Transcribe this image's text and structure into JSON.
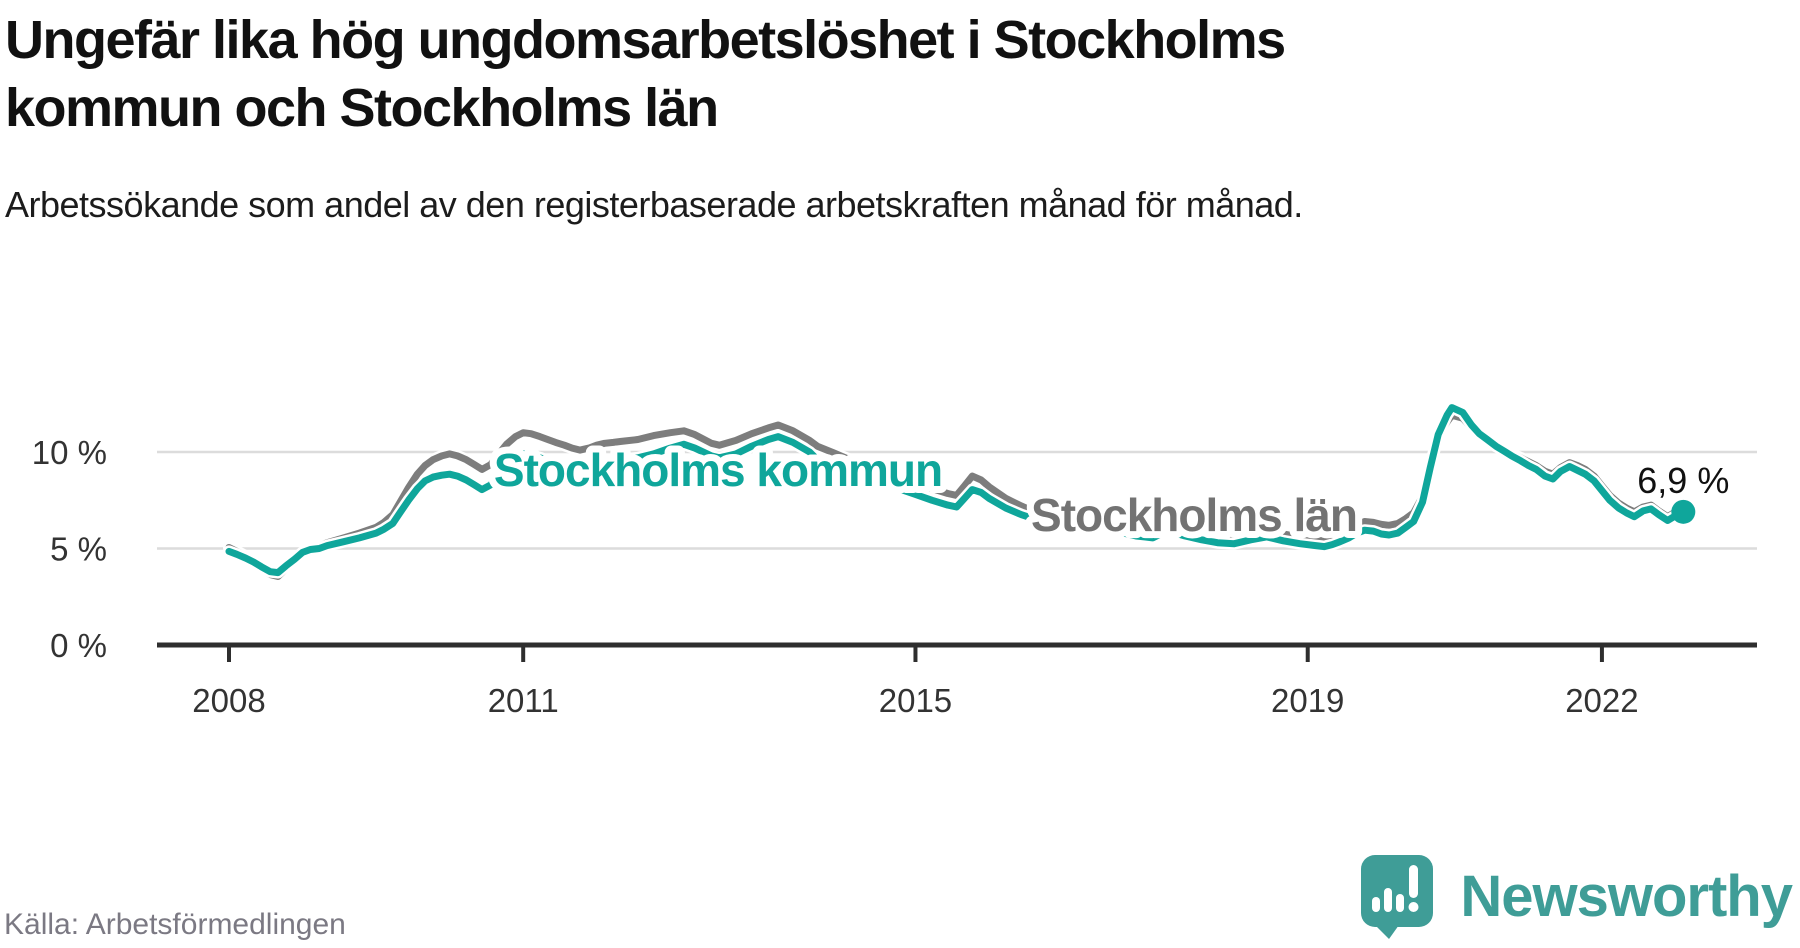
{
  "title": "Ungefär lika hög ungdomsarbetslöshet i Stockholms kommun och Stockholms län",
  "subtitle": "Arbetssökande som andel av den registerbaserade arbetskraften månad för månad.",
  "source": "Källa: Arbetsförmedlingen",
  "logo": {
    "text": "Newsworthy",
    "icon": "speech-bubble-bar-chart-exclamation",
    "color": "#3f9d97"
  },
  "colors": {
    "kommun_line": "#0fa69b",
    "lan_line": "#7d7d7d",
    "lan_label": "#737373",
    "gridline": "#dcdcdc",
    "axis": "#2e2e2e",
    "tick_text": "#333333",
    "end_label_text": "#111111"
  },
  "chart_data": {
    "type": "line",
    "title": "Ungefär lika hög ungdomsarbetslöshet i Stockholms kommun och Stockholms län",
    "xlabel": "",
    "ylabel": "Arbetssökande som andel av den registerbaserade arbetskraften",
    "x_axis": {
      "range": [
        2007.27,
        2023.58
      ],
      "ticks": [
        2008,
        2011,
        2015,
        2019,
        2022
      ],
      "tick_labels": [
        "2008",
        "2011",
        "2015",
        "2019",
        "2022"
      ]
    },
    "y_axis": {
      "range": [
        0,
        13.5
      ],
      "ticks": [
        0,
        5,
        10
      ],
      "tick_labels": [
        "0 %",
        "5 %",
        "10 %"
      ],
      "gridlines": [
        5,
        10
      ],
      "grid": true
    },
    "legend_position": "inline-labels",
    "end_label": "6,9 %",
    "end_value": 6.9,
    "series": [
      {
        "name": "Stockholms län",
        "color": "#7d7d7d",
        "label": {
          "text": "Stockholms län",
          "x": 1194,
          "y": 531,
          "color": "#737373"
        },
        "points": [
          [
            2008.0,
            5.05
          ],
          [
            2008.08,
            4.85
          ],
          [
            2008.17,
            4.6
          ],
          [
            2008.25,
            4.3
          ],
          [
            2008.33,
            3.95
          ],
          [
            2008.42,
            3.65
          ],
          [
            2008.5,
            3.55
          ],
          [
            2008.58,
            3.95
          ],
          [
            2008.67,
            4.4
          ],
          [
            2008.75,
            4.8
          ],
          [
            2008.83,
            5.0
          ],
          [
            2008.92,
            5.1
          ],
          [
            2009.0,
            5.3
          ],
          [
            2009.17,
            5.55
          ],
          [
            2009.33,
            5.8
          ],
          [
            2009.5,
            6.1
          ],
          [
            2009.58,
            6.35
          ],
          [
            2009.67,
            6.75
          ],
          [
            2009.75,
            7.45
          ],
          [
            2009.83,
            8.15
          ],
          [
            2009.92,
            8.85
          ],
          [
            2010.0,
            9.3
          ],
          [
            2010.08,
            9.6
          ],
          [
            2010.17,
            9.8
          ],
          [
            2010.25,
            9.9
          ],
          [
            2010.33,
            9.8
          ],
          [
            2010.42,
            9.6
          ],
          [
            2010.5,
            9.35
          ],
          [
            2010.58,
            9.1
          ],
          [
            2010.67,
            9.35
          ],
          [
            2010.75,
            9.9
          ],
          [
            2010.83,
            10.4
          ],
          [
            2010.92,
            10.8
          ],
          [
            2011.0,
            11.0
          ],
          [
            2011.08,
            10.95
          ],
          [
            2011.17,
            10.8
          ],
          [
            2011.25,
            10.65
          ],
          [
            2011.33,
            10.5
          ],
          [
            2011.42,
            10.35
          ],
          [
            2011.5,
            10.2
          ],
          [
            2011.58,
            10.1
          ],
          [
            2011.67,
            10.2
          ],
          [
            2011.75,
            10.35
          ],
          [
            2011.83,
            10.45
          ],
          [
            2011.92,
            10.5
          ],
          [
            2012.0,
            10.55
          ],
          [
            2012.17,
            10.65
          ],
          [
            2012.33,
            10.85
          ],
          [
            2012.5,
            11.0
          ],
          [
            2012.64,
            11.1
          ],
          [
            2012.75,
            10.9
          ],
          [
            2012.92,
            10.45
          ],
          [
            2013.0,
            10.35
          ],
          [
            2013.17,
            10.6
          ],
          [
            2013.33,
            10.95
          ],
          [
            2013.5,
            11.25
          ],
          [
            2013.6,
            11.4
          ],
          [
            2013.75,
            11.1
          ],
          [
            2013.92,
            10.6
          ],
          [
            2014.0,
            10.3
          ],
          [
            2014.17,
            9.95
          ],
          [
            2014.33,
            9.6
          ],
          [
            2014.5,
            9.3
          ],
          [
            2014.67,
            9.0
          ],
          [
            2014.83,
            8.65
          ],
          [
            2015.0,
            8.4
          ],
          [
            2015.17,
            8.1
          ],
          [
            2015.33,
            7.85
          ],
          [
            2015.42,
            7.75
          ],
          [
            2015.5,
            8.25
          ],
          [
            2015.58,
            8.75
          ],
          [
            2015.67,
            8.55
          ],
          [
            2015.75,
            8.2
          ],
          [
            2015.92,
            7.6
          ],
          [
            2016.08,
            7.2
          ],
          [
            2016.17,
            7.0
          ],
          [
            2016.33,
            6.9
          ],
          [
            2016.5,
            6.95
          ],
          [
            2016.58,
            7.0
          ],
          [
            2016.75,
            6.75
          ],
          [
            2016.92,
            6.45
          ],
          [
            2017.08,
            6.2
          ],
          [
            2017.25,
            6.0
          ],
          [
            2017.42,
            5.9
          ],
          [
            2017.5,
            6.1
          ],
          [
            2017.58,
            6.25
          ],
          [
            2017.75,
            6.0
          ],
          [
            2017.92,
            5.8
          ],
          [
            2018.08,
            5.65
          ],
          [
            2018.25,
            5.6
          ],
          [
            2018.42,
            5.8
          ],
          [
            2018.58,
            5.95
          ],
          [
            2018.75,
            5.75
          ],
          [
            2018.92,
            5.6
          ],
          [
            2019.08,
            5.5
          ],
          [
            2019.17,
            5.45
          ],
          [
            2019.25,
            5.55
          ],
          [
            2019.33,
            5.7
          ],
          [
            2019.42,
            5.95
          ],
          [
            2019.5,
            6.2
          ],
          [
            2019.58,
            6.4
          ],
          [
            2019.67,
            6.35
          ],
          [
            2019.75,
            6.25
          ],
          [
            2019.83,
            6.2
          ],
          [
            2019.92,
            6.3
          ],
          [
            2020.0,
            6.55
          ],
          [
            2020.08,
            6.85
          ],
          [
            2020.17,
            7.7
          ],
          [
            2020.25,
            9.35
          ],
          [
            2020.33,
            10.8
          ],
          [
            2020.42,
            11.55
          ],
          [
            2020.47,
            11.9
          ],
          [
            2020.58,
            11.75
          ],
          [
            2020.67,
            11.25
          ],
          [
            2020.75,
            10.85
          ],
          [
            2020.83,
            10.6
          ],
          [
            2020.92,
            10.3
          ],
          [
            2021.0,
            10.1
          ],
          [
            2021.08,
            9.9
          ],
          [
            2021.17,
            9.7
          ],
          [
            2021.25,
            9.5
          ],
          [
            2021.33,
            9.3
          ],
          [
            2021.42,
            9.0
          ],
          [
            2021.5,
            8.85
          ],
          [
            2021.58,
            9.2
          ],
          [
            2021.67,
            9.45
          ],
          [
            2021.75,
            9.3
          ],
          [
            2021.83,
            9.1
          ],
          [
            2021.92,
            8.75
          ],
          [
            2022.0,
            8.25
          ],
          [
            2022.08,
            7.75
          ],
          [
            2022.17,
            7.35
          ],
          [
            2022.25,
            7.1
          ],
          [
            2022.33,
            6.9
          ],
          [
            2022.42,
            7.15
          ],
          [
            2022.5,
            7.25
          ],
          [
            2022.58,
            6.95
          ],
          [
            2022.67,
            6.65
          ],
          [
            2022.75,
            6.9
          ],
          [
            2022.83,
            7.0
          ]
        ]
      },
      {
        "name": "Stockholms kommun",
        "color": "#0fa69b",
        "label": {
          "text": "Stockholms kommun",
          "x": 718,
          "y": 486,
          "color": "#0fa69b"
        },
        "end_dot": true,
        "points": [
          [
            2008.0,
            4.85
          ],
          [
            2008.08,
            4.7
          ],
          [
            2008.17,
            4.5
          ],
          [
            2008.25,
            4.3
          ],
          [
            2008.33,
            4.05
          ],
          [
            2008.42,
            3.8
          ],
          [
            2008.5,
            3.75
          ],
          [
            2008.58,
            4.1
          ],
          [
            2008.67,
            4.45
          ],
          [
            2008.75,
            4.8
          ],
          [
            2008.83,
            4.95
          ],
          [
            2008.92,
            5.0
          ],
          [
            2009.0,
            5.15
          ],
          [
            2009.17,
            5.35
          ],
          [
            2009.33,
            5.55
          ],
          [
            2009.5,
            5.8
          ],
          [
            2009.58,
            6.0
          ],
          [
            2009.67,
            6.3
          ],
          [
            2009.75,
            6.9
          ],
          [
            2009.83,
            7.5
          ],
          [
            2009.92,
            8.1
          ],
          [
            2010.0,
            8.5
          ],
          [
            2010.08,
            8.7
          ],
          [
            2010.17,
            8.8
          ],
          [
            2010.25,
            8.85
          ],
          [
            2010.33,
            8.75
          ],
          [
            2010.42,
            8.55
          ],
          [
            2010.5,
            8.3
          ],
          [
            2010.58,
            8.05
          ],
          [
            2010.67,
            8.3
          ],
          [
            2010.75,
            8.9
          ],
          [
            2010.83,
            9.4
          ],
          [
            2010.92,
            9.75
          ],
          [
            2011.0,
            9.9
          ],
          [
            2011.08,
            9.85
          ],
          [
            2011.17,
            9.7
          ],
          [
            2011.25,
            9.55
          ],
          [
            2011.33,
            9.4
          ],
          [
            2011.42,
            9.3
          ],
          [
            2011.5,
            9.1
          ],
          [
            2011.58,
            9.0
          ],
          [
            2011.67,
            9.1
          ],
          [
            2011.75,
            9.3
          ],
          [
            2011.83,
            9.45
          ],
          [
            2011.92,
            9.55
          ],
          [
            2012.0,
            9.6
          ],
          [
            2012.17,
            9.7
          ],
          [
            2012.33,
            9.9
          ],
          [
            2012.5,
            10.2
          ],
          [
            2012.64,
            10.4
          ],
          [
            2012.75,
            10.2
          ],
          [
            2012.92,
            9.8
          ],
          [
            2013.0,
            9.7
          ],
          [
            2013.17,
            9.9
          ],
          [
            2013.33,
            10.3
          ],
          [
            2013.5,
            10.65
          ],
          [
            2013.6,
            10.8
          ],
          [
            2013.75,
            10.5
          ],
          [
            2013.92,
            10.0
          ],
          [
            2014.0,
            9.6
          ],
          [
            2014.17,
            9.3
          ],
          [
            2014.33,
            9.0
          ],
          [
            2014.5,
            8.7
          ],
          [
            2014.67,
            8.4
          ],
          [
            2014.83,
            8.1
          ],
          [
            2015.0,
            7.8
          ],
          [
            2015.17,
            7.5
          ],
          [
            2015.33,
            7.25
          ],
          [
            2015.42,
            7.15
          ],
          [
            2015.5,
            7.6
          ],
          [
            2015.58,
            8.05
          ],
          [
            2015.67,
            7.9
          ],
          [
            2015.75,
            7.6
          ],
          [
            2015.92,
            7.1
          ],
          [
            2016.08,
            6.75
          ],
          [
            2016.17,
            6.6
          ],
          [
            2016.33,
            6.5
          ],
          [
            2016.5,
            6.55
          ],
          [
            2016.58,
            6.65
          ],
          [
            2016.75,
            6.4
          ],
          [
            2016.92,
            6.1
          ],
          [
            2017.08,
            5.85
          ],
          [
            2017.25,
            5.65
          ],
          [
            2017.42,
            5.55
          ],
          [
            2017.5,
            5.75
          ],
          [
            2017.58,
            5.9
          ],
          [
            2017.75,
            5.65
          ],
          [
            2017.92,
            5.45
          ],
          [
            2018.08,
            5.3
          ],
          [
            2018.25,
            5.25
          ],
          [
            2018.42,
            5.45
          ],
          [
            2018.58,
            5.6
          ],
          [
            2018.75,
            5.4
          ],
          [
            2018.92,
            5.25
          ],
          [
            2019.08,
            5.15
          ],
          [
            2019.17,
            5.1
          ],
          [
            2019.25,
            5.2
          ],
          [
            2019.33,
            5.35
          ],
          [
            2019.42,
            5.55
          ],
          [
            2019.5,
            5.8
          ],
          [
            2019.58,
            5.95
          ],
          [
            2019.67,
            5.9
          ],
          [
            2019.75,
            5.75
          ],
          [
            2019.83,
            5.7
          ],
          [
            2019.92,
            5.8
          ],
          [
            2020.0,
            6.1
          ],
          [
            2020.08,
            6.4
          ],
          [
            2020.17,
            7.4
          ],
          [
            2020.25,
            9.2
          ],
          [
            2020.33,
            10.9
          ],
          [
            2020.42,
            11.9
          ],
          [
            2020.47,
            12.3
          ],
          [
            2020.58,
            12.05
          ],
          [
            2020.67,
            11.4
          ],
          [
            2020.75,
            10.95
          ],
          [
            2020.83,
            10.65
          ],
          [
            2020.92,
            10.3
          ],
          [
            2021.0,
            10.05
          ],
          [
            2021.08,
            9.8
          ],
          [
            2021.17,
            9.55
          ],
          [
            2021.25,
            9.3
          ],
          [
            2021.33,
            9.1
          ],
          [
            2021.42,
            8.75
          ],
          [
            2021.5,
            8.6
          ],
          [
            2021.58,
            9.0
          ],
          [
            2021.67,
            9.25
          ],
          [
            2021.75,
            9.05
          ],
          [
            2021.83,
            8.85
          ],
          [
            2021.92,
            8.5
          ],
          [
            2022.0,
            8.0
          ],
          [
            2022.08,
            7.5
          ],
          [
            2022.17,
            7.1
          ],
          [
            2022.25,
            6.85
          ],
          [
            2022.33,
            6.65
          ],
          [
            2022.42,
            6.95
          ],
          [
            2022.5,
            7.05
          ],
          [
            2022.58,
            6.75
          ],
          [
            2022.67,
            6.45
          ],
          [
            2022.75,
            6.7
          ],
          [
            2022.83,
            6.9
          ]
        ]
      }
    ]
  }
}
